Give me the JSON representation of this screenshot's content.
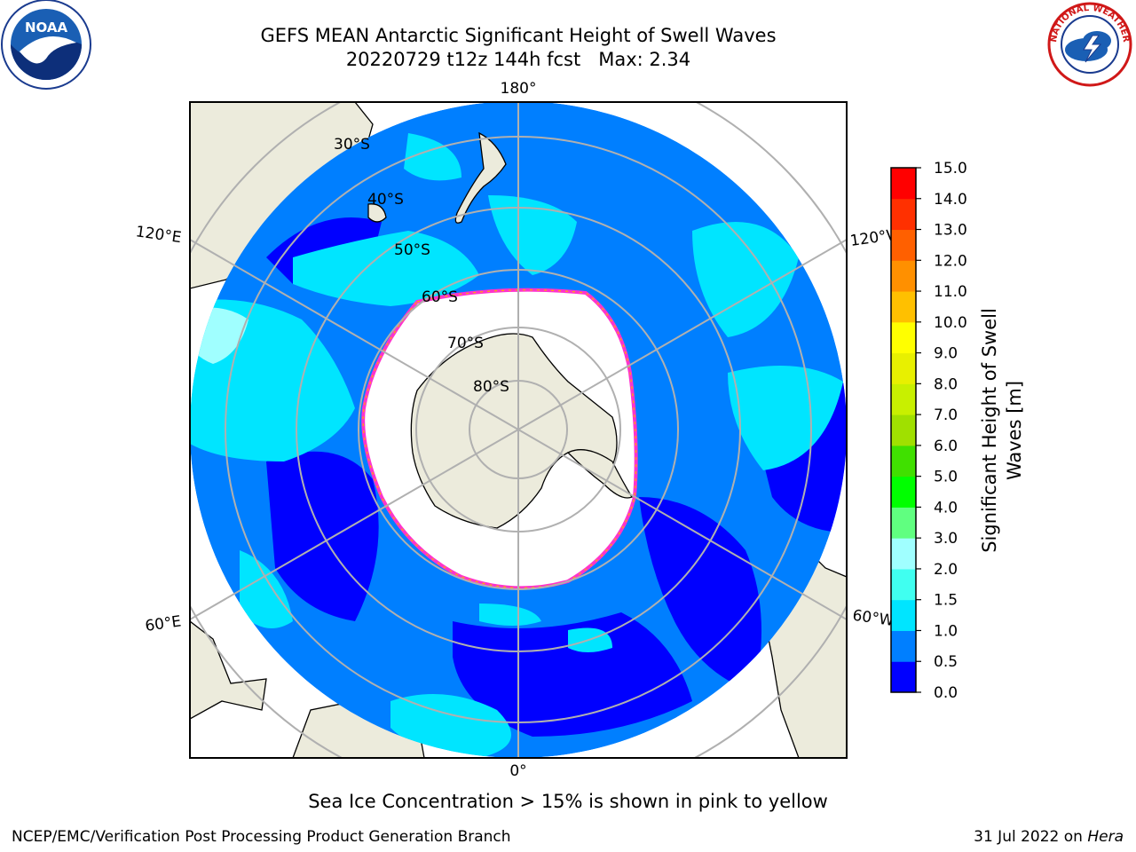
{
  "header": {
    "title_line1": "GEFS MEAN Antarctic Significant Height of Swell Waves",
    "title_line2": "20220729 t12z 144h fcst   Max: 2.34"
  },
  "logos": {
    "noara_text": "NOAA",
    "nws_text": "NATIONAL WEATHER SERVICE"
  },
  "map": {
    "projection": "south-polar-stereographic",
    "longitude_labels": {
      "top": "180°",
      "bottom": "0°",
      "upper_left": "120°E",
      "upper_right": "120°W",
      "lower_left": "60°E",
      "lower_right": "60°W"
    },
    "latitude_labels": [
      "30°S",
      "40°S",
      "50°S",
      "60°S",
      "70°S",
      "80°S"
    ],
    "colors": {
      "land": "#ECEBDC",
      "ice": "#FFFFFF",
      "ice_edge": [
        "#FF33CC",
        "#FFB000"
      ],
      "grid": "#B0B0B0"
    }
  },
  "colorbar": {
    "title_line1": "Significant Height of Swell",
    "title_line2": "Waves [m]",
    "ticks": [
      "15.0",
      "14.0",
      "13.0",
      "12.0",
      "11.0",
      "10.0",
      "9.0",
      "8.0",
      "7.0",
      "6.0",
      "5.0",
      "4.0",
      "3.0",
      "2.0",
      "1.5",
      "1.0",
      "0.5",
      "0.0"
    ],
    "colors": [
      "#0000FF",
      "#007FFF",
      "#00E5FF",
      "#40FFF0",
      "#A0FFFF",
      "#60FF80",
      "#00FF00",
      "#40E000",
      "#A0E000",
      "#C8F000",
      "#E8F000",
      "#FFFF00",
      "#FFC000",
      "#FF9000",
      "#FF6000",
      "#FF3000",
      "#FF0000"
    ]
  },
  "footer": {
    "note": "Sea Ice Concentration > 15% is shown in pink to yellow",
    "left": "NCEP/EMC/Verification Post Processing Product Generation Branch",
    "right_date": "31 Jul 2022 on ",
    "right_system": "Hera"
  }
}
